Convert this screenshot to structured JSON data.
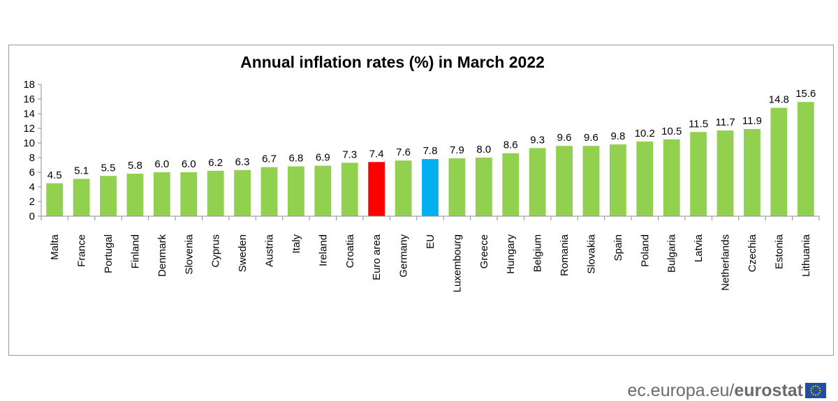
{
  "chart_data": {
    "type": "bar",
    "title": "Annual inflation rates (%)  in March 2022",
    "xlabel": "",
    "ylabel": "",
    "ylim": [
      0,
      18
    ],
    "yticks": [
      0,
      2,
      4,
      6,
      8,
      10,
      12,
      14,
      16,
      18
    ],
    "grid": false,
    "categories": [
      "Malta",
      "France",
      "Portugal",
      "Finland",
      "Denmark",
      "Slovenia",
      "Cyprus",
      "Sweden",
      "Austria",
      "Italy",
      "Ireland",
      "Croatia",
      "Euro area",
      "Germany",
      "EU",
      "Luxembourg",
      "Greece",
      "Hungary",
      "Belgium",
      "Romania",
      "Slovakia",
      "Spain",
      "Poland",
      "Bulgaria",
      "Latvia",
      "Netherlands",
      "Czechia",
      "Estonia",
      "Lithuania"
    ],
    "values": [
      4.5,
      5.1,
      5.5,
      5.8,
      6.0,
      6.0,
      6.2,
      6.3,
      6.7,
      6.8,
      6.9,
      7.3,
      7.4,
      7.6,
      7.8,
      7.9,
      8.0,
      8.6,
      9.3,
      9.6,
      9.6,
      9.8,
      10.2,
      10.5,
      11.5,
      11.7,
      11.9,
      14.8,
      15.6
    ],
    "data_labels": [
      "4.5",
      "5.1",
      "5.5",
      "5.8",
      "6.0",
      "6.0",
      "6.2",
      "6.3",
      "6.7",
      "6.8",
      "6.9",
      "7.3",
      "7.4",
      "7.6",
      "7.8",
      "7.9",
      "8.0",
      "8.6",
      "9.3",
      "9.6",
      "9.6",
      "9.8",
      "10.2",
      "10.5",
      "11.5",
      "11.7",
      "11.9",
      "14.8",
      "15.6"
    ],
    "colors": {
      "default": "#92d050",
      "Euro area": "#ff0000",
      "EU": "#00b0f0"
    }
  },
  "footer": {
    "domain": "ec.europa.eu",
    "slash": "/",
    "brand": "eurostat"
  },
  "icons": {
    "flag": "eu-flag-icon"
  }
}
